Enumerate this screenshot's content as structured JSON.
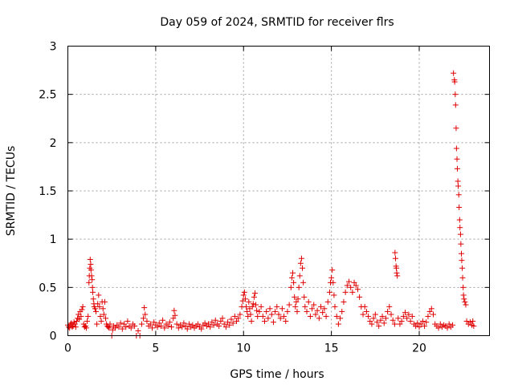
{
  "chart_data": {
    "type": "scatter",
    "title": "Day 059 of 2024, SRMTID for receiver flrs",
    "xlabel": "GPS time / hours",
    "ylabel": "SRMTID / TECUs",
    "xlim": [
      0,
      24
    ],
    "ylim": [
      0,
      3
    ],
    "xticks": [
      0,
      5,
      10,
      15,
      20
    ],
    "xtick_labels": [
      "0",
      "5",
      "10",
      "15",
      "20"
    ],
    "yticks": [
      0,
      0.5,
      1,
      1.5,
      2,
      2.5,
      3
    ],
    "ytick_labels": [
      "0",
      "0.5",
      "1",
      "1.5",
      "2",
      "2.5",
      "3"
    ],
    "grid": true,
    "marker": "+",
    "color": "#e00000",
    "series": [
      {
        "name": "SRMTID",
        "points": [
          [
            0.0,
            0.11
          ],
          [
            0.05,
            0.09
          ],
          [
            0.1,
            0.08
          ],
          [
            0.15,
            0.12
          ],
          [
            0.2,
            0.13
          ],
          [
            0.25,
            0.09
          ],
          [
            0.3,
            0.1
          ],
          [
            0.35,
            0.14
          ],
          [
            0.4,
            0.12
          ],
          [
            0.45,
            0.09
          ],
          [
            0.5,
            0.15
          ],
          [
            0.55,
            0.18
          ],
          [
            0.6,
            0.22
          ],
          [
            0.65,
            0.17
          ],
          [
            0.7,
            0.25
          ],
          [
            0.75,
            0.2
          ],
          [
            0.8,
            0.27
          ],
          [
            0.85,
            0.3
          ],
          [
            0.9,
            0.12
          ],
          [
            0.95,
            0.09
          ],
          [
            1.0,
            0.1
          ],
          [
            1.05,
            0.08
          ],
          [
            1.1,
            0.15
          ],
          [
            1.15,
            0.2
          ],
          [
            1.2,
            0.55
          ],
          [
            1.22,
            0.62
          ],
          [
            1.25,
            0.7
          ],
          [
            1.27,
            0.79
          ],
          [
            1.3,
            0.74
          ],
          [
            1.32,
            0.68
          ],
          [
            1.35,
            0.62
          ],
          [
            1.38,
            0.58
          ],
          [
            1.4,
            0.5
          ],
          [
            1.42,
            0.45
          ],
          [
            1.45,
            0.38
          ],
          [
            1.48,
            0.33
          ],
          [
            1.5,
            0.3
          ],
          [
            1.55,
            0.28
          ],
          [
            1.6,
            0.25
          ],
          [
            1.65,
            0.12
          ],
          [
            1.7,
            0.33
          ],
          [
            1.75,
            0.42
          ],
          [
            1.8,
            0.3
          ],
          [
            1.85,
            0.2
          ],
          [
            1.9,
            0.15
          ],
          [
            1.95,
            0.35
          ],
          [
            2.0,
            0.28
          ],
          [
            2.05,
            0.22
          ],
          [
            2.1,
            0.35
          ],
          [
            2.15,
            0.18
          ],
          [
            2.2,
            0.12
          ],
          [
            2.25,
            0.1
          ],
          [
            2.3,
            0.09
          ],
          [
            2.35,
            0.08
          ],
          [
            2.4,
            0.12
          ],
          [
            2.5,
            0.0
          ],
          [
            2.55,
            0.06
          ],
          [
            2.6,
            0.1
          ],
          [
            2.7,
            0.08
          ],
          [
            2.8,
            0.11
          ],
          [
            2.9,
            0.09
          ],
          [
            3.0,
            0.13
          ],
          [
            3.1,
            0.07
          ],
          [
            3.2,
            0.12
          ],
          [
            3.3,
            0.09
          ],
          [
            3.4,
            0.15
          ],
          [
            3.5,
            0.1
          ],
          [
            3.6,
            0.08
          ],
          [
            3.7,
            0.12
          ],
          [
            3.8,
            0.1
          ],
          [
            3.9,
            0.0
          ],
          [
            4.0,
            0.05
          ],
          [
            4.1,
            0.0
          ],
          [
            4.2,
            0.12
          ],
          [
            4.3,
            0.18
          ],
          [
            4.35,
            0.29
          ],
          [
            4.4,
            0.22
          ],
          [
            4.5,
            0.15
          ],
          [
            4.6,
            0.1
          ],
          [
            4.7,
            0.12
          ],
          [
            4.8,
            0.08
          ],
          [
            4.9,
            0.14
          ],
          [
            5.0,
            0.11
          ],
          [
            5.1,
            0.09
          ],
          [
            5.2,
            0.13
          ],
          [
            5.3,
            0.1
          ],
          [
            5.4,
            0.16
          ],
          [
            5.5,
            0.08
          ],
          [
            5.6,
            0.12
          ],
          [
            5.7,
            0.1
          ],
          [
            5.8,
            0.14
          ],
          [
            5.9,
            0.09
          ],
          [
            6.0,
            0.18
          ],
          [
            6.05,
            0.26
          ],
          [
            6.1,
            0.21
          ],
          [
            6.2,
            0.12
          ],
          [
            6.3,
            0.08
          ],
          [
            6.4,
            0.11
          ],
          [
            6.5,
            0.09
          ],
          [
            6.6,
            0.13
          ],
          [
            6.7,
            0.1
          ],
          [
            6.8,
            0.07
          ],
          [
            6.9,
            0.12
          ],
          [
            7.0,
            0.09
          ],
          [
            7.1,
            0.11
          ],
          [
            7.2,
            0.08
          ],
          [
            7.3,
            0.1
          ],
          [
            7.4,
            0.12
          ],
          [
            7.5,
            0.09
          ],
          [
            7.6,
            0.07
          ],
          [
            7.7,
            0.11
          ],
          [
            7.8,
            0.13
          ],
          [
            7.9,
            0.1
          ],
          [
            8.0,
            0.12
          ],
          [
            8.1,
            0.09
          ],
          [
            8.2,
            0.14
          ],
          [
            8.3,
            0.11
          ],
          [
            8.4,
            0.16
          ],
          [
            8.5,
            0.12
          ],
          [
            8.6,
            0.1
          ],
          [
            8.7,
            0.15
          ],
          [
            8.8,
            0.18
          ],
          [
            8.9,
            0.12
          ],
          [
            9.0,
            0.09
          ],
          [
            9.1,
            0.14
          ],
          [
            9.2,
            0.11
          ],
          [
            9.3,
            0.17
          ],
          [
            9.4,
            0.13
          ],
          [
            9.5,
            0.2
          ],
          [
            9.6,
            0.15
          ],
          [
            9.7,
            0.18
          ],
          [
            9.8,
            0.22
          ],
          [
            9.9,
            0.3
          ],
          [
            9.95,
            0.36
          ],
          [
            10.0,
            0.42
          ],
          [
            10.05,
            0.45
          ],
          [
            10.1,
            0.38
          ],
          [
            10.15,
            0.3
          ],
          [
            10.2,
            0.25
          ],
          [
            10.25,
            0.2
          ],
          [
            10.3,
            0.35
          ],
          [
            10.35,
            0.28
          ],
          [
            10.4,
            0.22
          ],
          [
            10.45,
            0.15
          ],
          [
            10.5,
            0.3
          ],
          [
            10.55,
            0.33
          ],
          [
            10.6,
            0.4
          ],
          [
            10.65,
            0.44
          ],
          [
            10.7,
            0.32
          ],
          [
            10.75,
            0.26
          ],
          [
            10.8,
            0.2
          ],
          [
            10.9,
            0.25
          ],
          [
            11.0,
            0.3
          ],
          [
            11.1,
            0.2
          ],
          [
            11.2,
            0.15
          ],
          [
            11.3,
            0.25
          ],
          [
            11.4,
            0.18
          ],
          [
            11.5,
            0.28
          ],
          [
            11.6,
            0.22
          ],
          [
            11.7,
            0.14
          ],
          [
            11.8,
            0.25
          ],
          [
            11.9,
            0.3
          ],
          [
            12.0,
            0.22
          ],
          [
            12.1,
            0.18
          ],
          [
            12.2,
            0.28
          ],
          [
            12.3,
            0.2
          ],
          [
            12.4,
            0.15
          ],
          [
            12.5,
            0.25
          ],
          [
            12.6,
            0.32
          ],
          [
            12.7,
            0.5
          ],
          [
            12.75,
            0.6
          ],
          [
            12.8,
            0.65
          ],
          [
            12.85,
            0.55
          ],
          [
            12.9,
            0.4
          ],
          [
            12.95,
            0.3
          ],
          [
            13.0,
            0.35
          ],
          [
            13.05,
            0.25
          ],
          [
            13.1,
            0.38
          ],
          [
            13.15,
            0.5
          ],
          [
            13.2,
            0.62
          ],
          [
            13.25,
            0.75
          ],
          [
            13.3,
            0.8
          ],
          [
            13.35,
            0.7
          ],
          [
            13.4,
            0.55
          ],
          [
            13.45,
            0.4
          ],
          [
            13.5,
            0.3
          ],
          [
            13.6,
            0.25
          ],
          [
            13.7,
            0.35
          ],
          [
            13.8,
            0.2
          ],
          [
            13.9,
            0.28
          ],
          [
            14.0,
            0.32
          ],
          [
            14.1,
            0.22
          ],
          [
            14.2,
            0.26
          ],
          [
            14.3,
            0.18
          ],
          [
            14.4,
            0.3
          ],
          [
            14.5,
            0.24
          ],
          [
            14.6,
            0.28
          ],
          [
            14.7,
            0.2
          ],
          [
            14.8,
            0.35
          ],
          [
            14.9,
            0.45
          ],
          [
            14.95,
            0.55
          ],
          [
            15.0,
            0.6
          ],
          [
            15.05,
            0.68
          ],
          [
            15.1,
            0.55
          ],
          [
            15.15,
            0.42
          ],
          [
            15.2,
            0.3
          ],
          [
            15.3,
            0.2
          ],
          [
            15.4,
            0.12
          ],
          [
            15.5,
            0.18
          ],
          [
            15.6,
            0.25
          ],
          [
            15.7,
            0.35
          ],
          [
            15.8,
            0.45
          ],
          [
            15.9,
            0.52
          ],
          [
            16.0,
            0.56
          ],
          [
            16.1,
            0.5
          ],
          [
            16.2,
            0.45
          ],
          [
            16.3,
            0.55
          ],
          [
            16.4,
            0.52
          ],
          [
            16.5,
            0.48
          ],
          [
            16.6,
            0.4
          ],
          [
            16.7,
            0.3
          ],
          [
            16.8,
            0.22
          ],
          [
            16.9,
            0.3
          ],
          [
            17.0,
            0.25
          ],
          [
            17.1,
            0.2
          ],
          [
            17.2,
            0.15
          ],
          [
            17.3,
            0.12
          ],
          [
            17.4,
            0.18
          ],
          [
            17.5,
            0.22
          ],
          [
            17.6,
            0.14
          ],
          [
            17.7,
            0.1
          ],
          [
            17.8,
            0.16
          ],
          [
            17.9,
            0.2
          ],
          [
            18.0,
            0.13
          ],
          [
            18.1,
            0.18
          ],
          [
            18.2,
            0.25
          ],
          [
            18.3,
            0.3
          ],
          [
            18.4,
            0.22
          ],
          [
            18.5,
            0.16
          ],
          [
            18.6,
            0.12
          ],
          [
            18.62,
            0.86
          ],
          [
            18.65,
            0.8
          ],
          [
            18.68,
            0.72
          ],
          [
            18.7,
            0.7
          ],
          [
            18.72,
            0.65
          ],
          [
            18.75,
            0.62
          ],
          [
            18.8,
            0.18
          ],
          [
            18.9,
            0.12
          ],
          [
            19.0,
            0.15
          ],
          [
            19.1,
            0.2
          ],
          [
            19.2,
            0.24
          ],
          [
            19.3,
            0.18
          ],
          [
            19.4,
            0.22
          ],
          [
            19.5,
            0.15
          ],
          [
            19.6,
            0.2
          ],
          [
            19.7,
            0.12
          ],
          [
            19.8,
            0.1
          ],
          [
            19.9,
            0.13
          ],
          [
            20.0,
            0.09
          ],
          [
            20.1,
            0.12
          ],
          [
            20.2,
            0.15
          ],
          [
            20.3,
            0.1
          ],
          [
            20.4,
            0.14
          ],
          [
            20.5,
            0.2
          ],
          [
            20.6,
            0.25
          ],
          [
            20.7,
            0.28
          ],
          [
            20.8,
            0.22
          ],
          [
            20.9,
            0.12
          ],
          [
            21.0,
            0.1
          ],
          [
            21.1,
            0.08
          ],
          [
            21.2,
            0.12
          ],
          [
            21.3,
            0.09
          ],
          [
            21.4,
            0.11
          ],
          [
            21.5,
            0.1
          ],
          [
            21.6,
            0.08
          ],
          [
            21.7,
            0.12
          ],
          [
            21.8,
            0.09
          ],
          [
            21.9,
            0.11
          ],
          [
            21.95,
            2.72
          ],
          [
            22.0,
            2.65
          ],
          [
            22.02,
            2.63
          ],
          [
            22.05,
            2.5
          ],
          [
            22.07,
            2.39
          ],
          [
            22.1,
            2.15
          ],
          [
            22.12,
            1.94
          ],
          [
            22.15,
            1.83
          ],
          [
            22.17,
            1.73
          ],
          [
            22.2,
            1.6
          ],
          [
            22.22,
            1.55
          ],
          [
            22.25,
            1.46
          ],
          [
            22.27,
            1.33
          ],
          [
            22.3,
            1.2
          ],
          [
            22.32,
            1.12
          ],
          [
            22.35,
            1.05
          ],
          [
            22.37,
            0.95
          ],
          [
            22.4,
            0.85
          ],
          [
            22.42,
            0.78
          ],
          [
            22.45,
            0.7
          ],
          [
            22.47,
            0.6
          ],
          [
            22.5,
            0.5
          ],
          [
            22.52,
            0.42
          ],
          [
            22.55,
            0.38
          ],
          [
            22.6,
            0.35
          ],
          [
            22.65,
            0.32
          ],
          [
            22.7,
            0.15
          ],
          [
            22.8,
            0.12
          ],
          [
            22.9,
            0.14
          ],
          [
            23.0,
            0.11
          ],
          [
            23.05,
            0.15
          ],
          [
            23.1,
            0.1
          ]
        ]
      }
    ]
  }
}
